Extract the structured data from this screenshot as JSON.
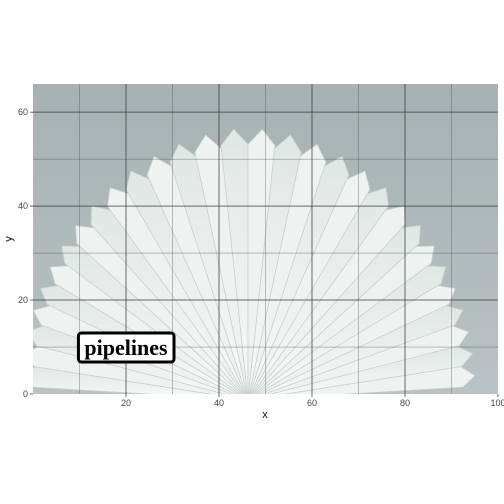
{
  "chart_data": {
    "type": "scatter",
    "title": "",
    "xlabel": "x",
    "ylabel": "y",
    "xlim": [
      0,
      100
    ],
    "ylim": [
      0,
      66
    ],
    "x_ticks": [
      20,
      40,
      60,
      80,
      100
    ],
    "y_ticks": [
      0,
      20,
      40,
      60
    ],
    "grid": true,
    "background": "photo of white fan-shaped pleated shapes radiating from the bottom center",
    "annotations": [
      {
        "text": "pipelines",
        "x": 20,
        "y": 10
      }
    ],
    "colors": {
      "sky": "#a9b4b5",
      "fan_light": "#eef3f1",
      "fan_shadow": "#c9d3d0",
      "grid": "#3a3a3a"
    }
  }
}
